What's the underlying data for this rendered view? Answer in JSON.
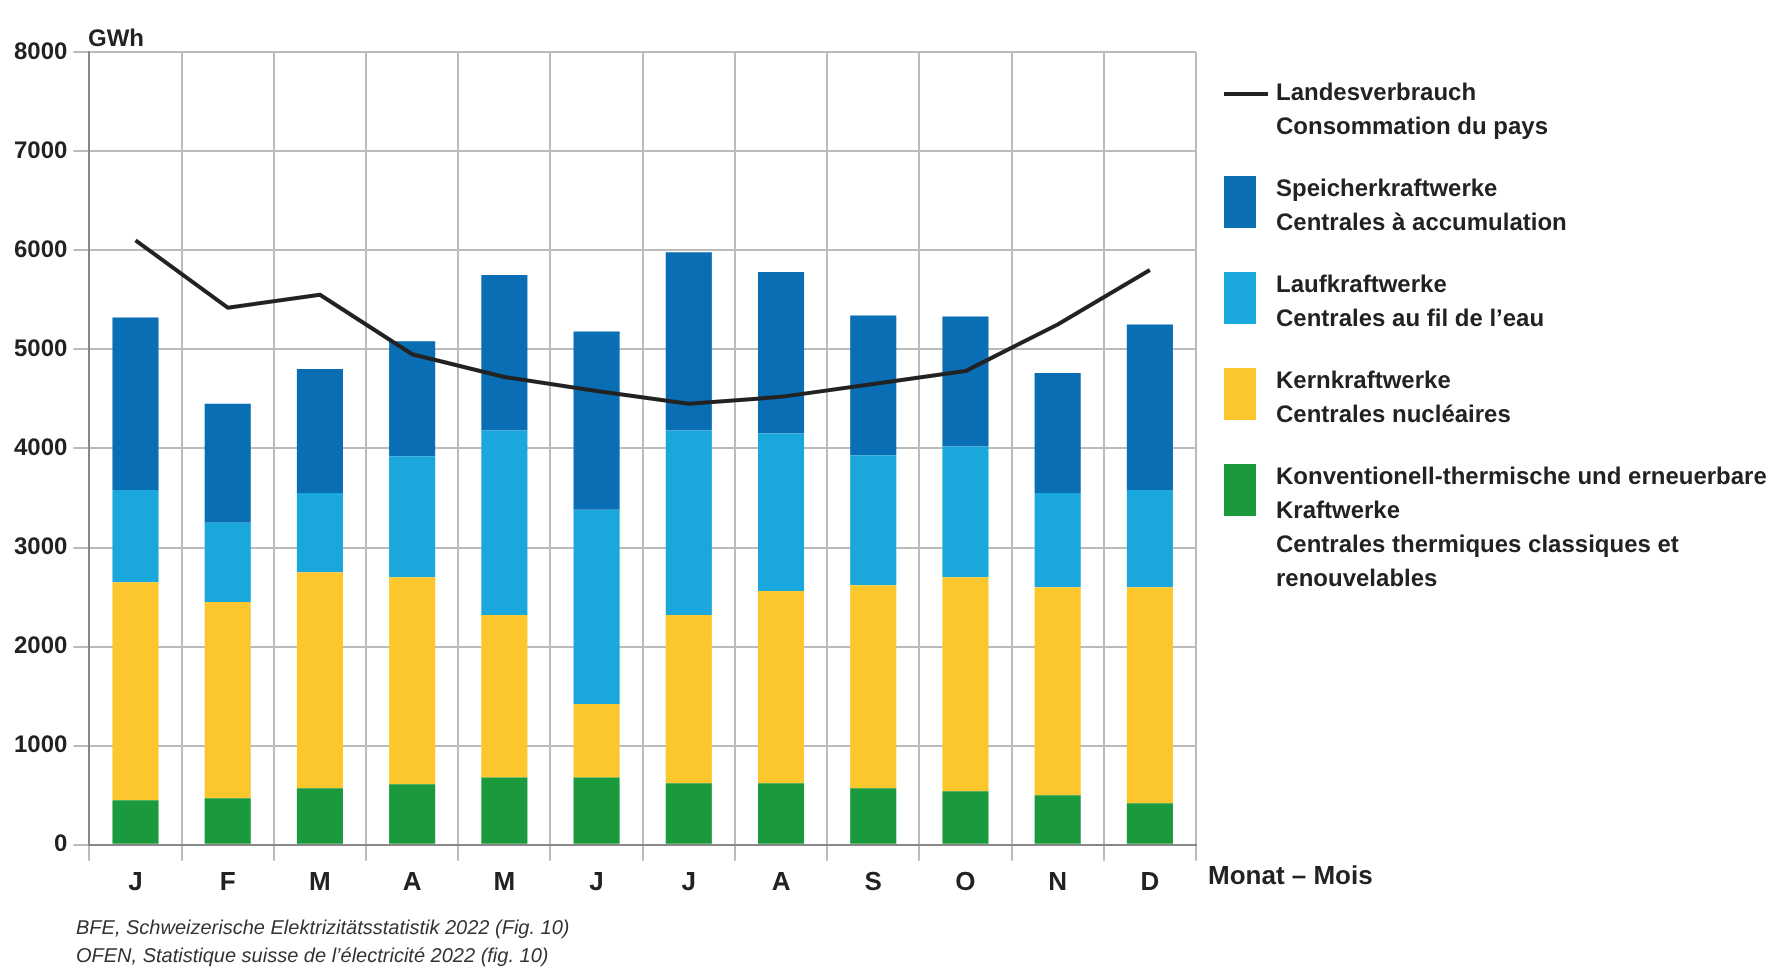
{
  "chart_data": {
    "type": "bar",
    "stacked": true,
    "ylabel": "GWh",
    "xlabel": "Monat – Mois",
    "categories": [
      "J",
      "F",
      "M",
      "A",
      "M",
      "J",
      "J",
      "A",
      "S",
      "O",
      "N",
      "D"
    ],
    "ylim": [
      0,
      8000
    ],
    "yticks": [
      0,
      1000,
      2000,
      3000,
      4000,
      5000,
      6000,
      7000,
      8000
    ],
    "grid": true,
    "legend": "right",
    "series": [
      {
        "name": "Landesverbrauch\nConsommation du pays",
        "type": "line",
        "color": "#222222",
        "values": [
          6100,
          5420,
          5550,
          4950,
          4720,
          4580,
          4450,
          4520,
          4650,
          4780,
          5250,
          5800
        ]
      },
      {
        "name": "Konventionell-thermische und erneuerbare Kraftwerke\nCentrales thermiques classiques et renouvelables",
        "color": "#1a9a3c",
        "values": [
          450,
          470,
          570,
          610,
          680,
          680,
          620,
          620,
          570,
          540,
          500,
          420
        ]
      },
      {
        "name": "Kernkraftwerke\nCentrales nucléaires",
        "color": "#fcc72c",
        "values": [
          2200,
          1980,
          2180,
          2090,
          1640,
          740,
          1700,
          1940,
          2050,
          2160,
          2100,
          2180
        ]
      },
      {
        "name": "Laufkraftwerke\nCentrales au fil de l’eau",
        "color": "#1aa8dc",
        "values": [
          930,
          800,
          800,
          1220,
          1860,
          1960,
          1860,
          1590,
          1310,
          1320,
          950,
          980
        ]
      },
      {
        "name": "Speicherkraftwerke\nCentrales à accumulation",
        "color": "#0a6eb4",
        "values": [
          1740,
          1200,
          1250,
          1160,
          1570,
          1800,
          1800,
          1630,
          1410,
          1310,
          1210,
          1670
        ]
      }
    ],
    "annotations": [
      "BFE, Schweizerische Elektrizitätsstatistik 2022 (Fig. 10)",
      "OFEN, Statistique suisse de l’électricité 2022 (fig. 10)"
    ]
  }
}
